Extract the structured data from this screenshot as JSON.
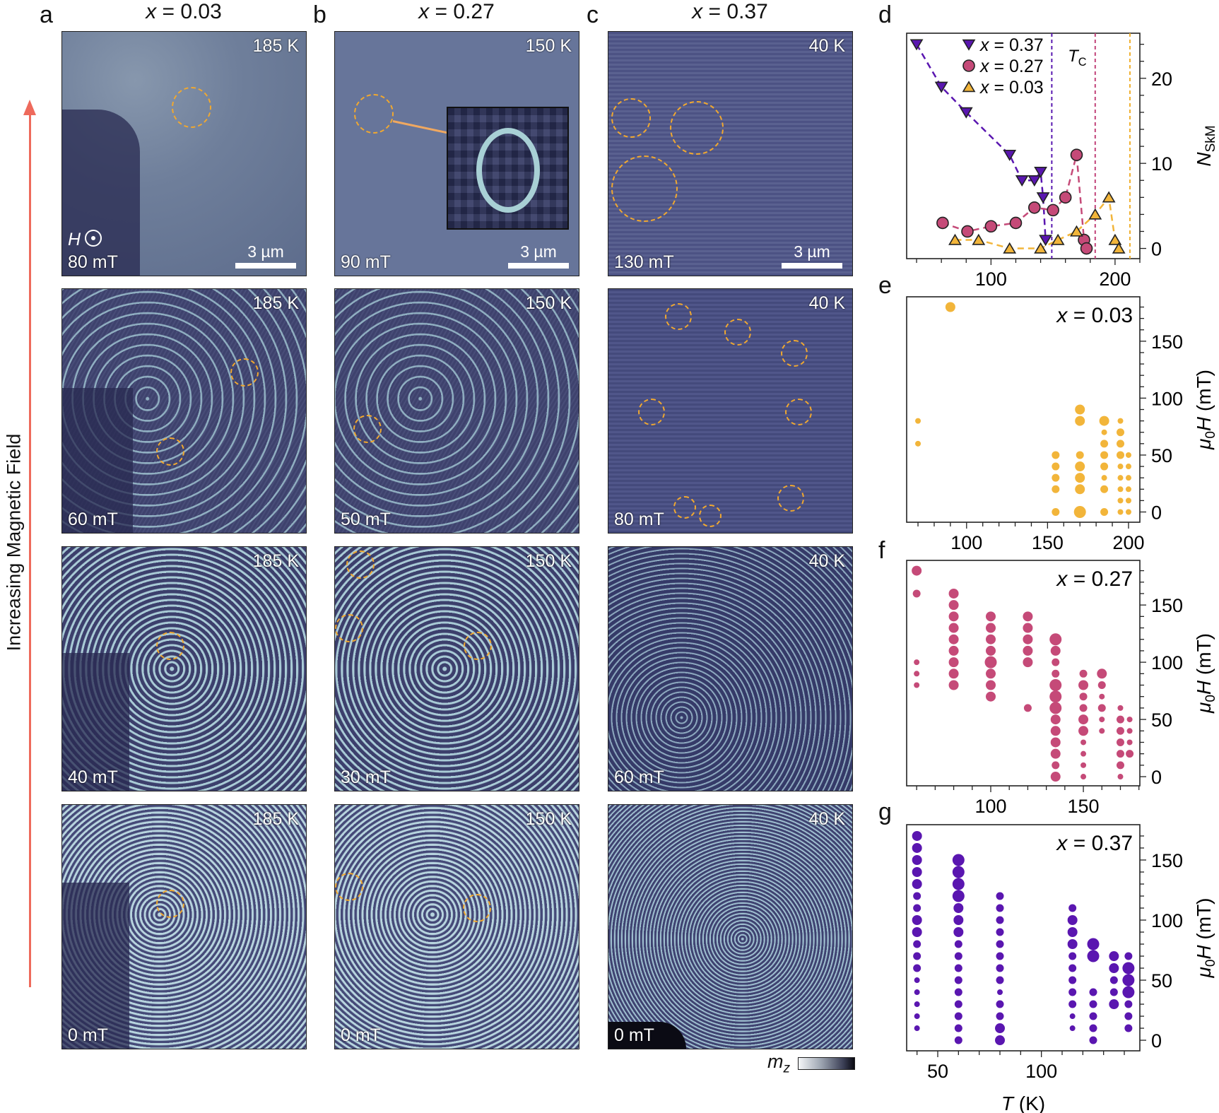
{
  "figure": {
    "side_label": "Increasing Magnetic Field",
    "panel_letters": {
      "a": "a",
      "b": "b",
      "c": "c",
      "d": "d",
      "e": "e",
      "f": "f",
      "g": "g"
    },
    "columns": [
      {
        "var": "x",
        "eq": " = 0.03",
        "temp": "185 K",
        "fields": [
          "80 mT",
          "60 mT",
          "40 mT",
          "0 mT"
        ]
      },
      {
        "var": "x",
        "eq": " = 0.27",
        "temp": "150 K",
        "fields": [
          "90 mT",
          "50 mT",
          "30 mT",
          "0 mT"
        ]
      },
      {
        "var": "x",
        "eq": " = 0.37",
        "temp": "40 K",
        "fields": [
          "130 mT",
          "80 mT",
          "60 mT",
          "0 mT"
        ]
      }
    ],
    "scale_bar": "3 µm",
    "field_symbol": "H",
    "colorbar": {
      "label": "m",
      "sub": "z"
    }
  },
  "chart_data": [
    {
      "panel": "d",
      "type": "line",
      "xlim": [
        32,
        220
      ],
      "ylim": [
        -1.2,
        25.3
      ],
      "xticks": [
        100,
        200
      ],
      "xminor": 20,
      "yticks": [
        0,
        10,
        20
      ],
      "yminor": 2,
      "xticklabels": [
        "100",
        "200"
      ],
      "yticklabels": [
        "0",
        "10",
        "20"
      ],
      "ylabel": [
        {
          "t": "N",
          "i": true
        },
        {
          "t": "SkM",
          "sub": true
        }
      ],
      "legend_position": "top-left",
      "tc_label": [
        {
          "t": "T",
          "i": true
        },
        {
          "t": "C",
          "sub": true
        }
      ],
      "tc_lines": [
        {
          "x": 149,
          "color": "#5a1ab0"
        },
        {
          "x": 184,
          "color": "#c2457a"
        },
        {
          "x": 212,
          "color": "#f0b030"
        }
      ],
      "series": [
        {
          "name": "x = 0.37",
          "marker": "triangle-down",
          "color": "#5a16b0",
          "x": [
            40,
            60,
            80,
            115,
            125,
            135,
            140,
            142,
            144
          ],
          "y": [
            24,
            19,
            16,
            11,
            8,
            8,
            9,
            6,
            1
          ]
        },
        {
          "name": "x = 0.27",
          "marker": "circle",
          "color": "#c54a78",
          "x": [
            61,
            81,
            100,
            120,
            135,
            150,
            160,
            169,
            175,
            177
          ],
          "y": [
            3,
            2,
            2.6,
            3,
            4.8,
            4.5,
            6,
            11,
            1,
            0
          ]
        },
        {
          "name": "x = 0.03",
          "marker": "triangle-up",
          "color": "#f2b53a",
          "x": [
            71,
            90,
            115,
            140,
            154,
            169,
            184,
            195,
            200,
            203
          ],
          "y": [
            1,
            1,
            0,
            0,
            1,
            2,
            4,
            6,
            1,
            0
          ]
        }
      ]
    },
    {
      "panel": "e",
      "type": "scatter",
      "title": "x = 0.03",
      "color": "#f2b53a",
      "xlim": [
        63,
        207
      ],
      "ylim": [
        -9,
        189
      ],
      "xticks": [
        100,
        150,
        200
      ],
      "xminor": 10,
      "yticks": [
        0,
        50,
        100,
        150
      ],
      "yminor": 10,
      "xticklabels": [
        "100",
        "150",
        "200"
      ],
      "yticklabels": [
        "0",
        "50",
        "100",
        "150"
      ],
      "ylabel": [
        {
          "t": "μ",
          "i": true
        },
        {
          "t": "0",
          "sub": true
        },
        {
          "t": "H",
          "i": true
        },
        {
          "t": " (mT)"
        }
      ],
      "point_format": [
        "T (K)",
        "μ0H (mT)",
        "size"
      ],
      "points": [
        [
          70,
          80,
          1
        ],
        [
          70,
          60,
          1
        ],
        [
          90,
          180,
          3
        ],
        [
          155,
          50,
          2
        ],
        [
          155,
          40,
          2
        ],
        [
          155,
          30,
          2
        ],
        [
          155,
          20,
          2
        ],
        [
          155,
          0,
          2
        ],
        [
          170,
          90,
          3
        ],
        [
          170,
          80,
          3
        ],
        [
          170,
          50,
          2
        ],
        [
          170,
          40,
          3
        ],
        [
          170,
          30,
          3
        ],
        [
          170,
          20,
          3
        ],
        [
          170,
          0,
          4
        ],
        [
          185,
          80,
          3
        ],
        [
          185,
          70,
          1
        ],
        [
          185,
          60,
          2
        ],
        [
          185,
          50,
          2
        ],
        [
          185,
          40,
          2
        ],
        [
          185,
          30,
          1
        ],
        [
          185,
          20,
          2
        ],
        [
          185,
          0,
          2
        ],
        [
          195,
          80,
          1
        ],
        [
          195,
          70,
          2
        ],
        [
          195,
          60,
          2
        ],
        [
          195,
          50,
          2
        ],
        [
          195,
          40,
          1
        ],
        [
          195,
          30,
          1
        ],
        [
          195,
          20,
          1
        ],
        [
          195,
          10,
          1
        ],
        [
          195,
          0,
          1
        ],
        [
          200,
          50,
          1
        ],
        [
          200,
          40,
          1
        ],
        [
          200,
          30,
          1
        ],
        [
          200,
          20,
          1
        ],
        [
          200,
          10,
          1
        ],
        [
          200,
          0,
          1
        ]
      ]
    },
    {
      "panel": "f",
      "type": "scatter",
      "title": "x = 0.27",
      "color": "#c54a78",
      "xlim": [
        54.6,
        180.5
      ],
      "ylim": [
        -8,
        189
      ],
      "xticks": [
        100,
        150
      ],
      "xminor": 10,
      "yticks": [
        0,
        50,
        100,
        150
      ],
      "yminor": 10,
      "xticklabels": [
        "100",
        "150"
      ],
      "yticklabels": [
        "0",
        "50",
        "100",
        "150"
      ],
      "ylabel": [
        {
          "t": "μ",
          "i": true
        },
        {
          "t": "0",
          "sub": true
        },
        {
          "t": "H",
          "i": true
        },
        {
          "t": " (mT)"
        }
      ],
      "point_format": [
        "T (K)",
        "μ0H (mT)",
        "size"
      ],
      "points": [
        [
          60,
          180,
          3
        ],
        [
          60,
          160,
          2
        ],
        [
          60,
          100,
          1
        ],
        [
          60,
          90,
          1
        ],
        [
          60,
          80,
          1
        ],
        [
          80,
          160,
          3
        ],
        [
          80,
          150,
          3
        ],
        [
          80,
          140,
          3
        ],
        [
          80,
          130,
          3
        ],
        [
          80,
          120,
          3
        ],
        [
          80,
          110,
          3
        ],
        [
          80,
          100,
          3
        ],
        [
          80,
          90,
          3
        ],
        [
          80,
          80,
          3
        ],
        [
          100,
          140,
          3
        ],
        [
          100,
          130,
          3
        ],
        [
          100,
          120,
          3
        ],
        [
          100,
          110,
          3
        ],
        [
          100,
          100,
          4
        ],
        [
          100,
          90,
          3
        ],
        [
          100,
          80,
          3
        ],
        [
          100,
          70,
          3
        ],
        [
          120,
          140,
          3
        ],
        [
          120,
          130,
          3
        ],
        [
          120,
          120,
          3
        ],
        [
          120,
          110,
          3
        ],
        [
          120,
          100,
          3
        ],
        [
          120,
          60,
          2
        ],
        [
          135,
          120,
          4
        ],
        [
          135,
          110,
          3
        ],
        [
          135,
          100,
          2
        ],
        [
          135,
          90,
          2
        ],
        [
          135,
          80,
          4
        ],
        [
          135,
          70,
          4
        ],
        [
          135,
          60,
          4
        ],
        [
          135,
          50,
          3
        ],
        [
          135,
          40,
          3
        ],
        [
          135,
          30,
          3
        ],
        [
          135,
          20,
          3
        ],
        [
          135,
          10,
          2
        ],
        [
          135,
          0,
          3
        ],
        [
          150,
          90,
          2
        ],
        [
          150,
          80,
          3
        ],
        [
          150,
          70,
          2
        ],
        [
          150,
          60,
          2
        ],
        [
          150,
          50,
          3
        ],
        [
          150,
          40,
          3
        ],
        [
          150,
          30,
          1
        ],
        [
          150,
          20,
          1
        ],
        [
          150,
          10,
          1
        ],
        [
          150,
          0,
          1
        ],
        [
          160,
          90,
          3
        ],
        [
          160,
          80,
          2
        ],
        [
          160,
          70,
          1
        ],
        [
          160,
          60,
          2
        ],
        [
          160,
          50,
          1
        ],
        [
          160,
          40,
          1
        ],
        [
          170,
          60,
          1
        ],
        [
          170,
          50,
          2
        ],
        [
          170,
          40,
          2
        ],
        [
          170,
          30,
          2
        ],
        [
          170,
          20,
          2
        ],
        [
          170,
          10,
          2
        ],
        [
          170,
          0,
          1
        ],
        [
          175,
          50,
          1
        ],
        [
          175,
          40,
          1
        ],
        [
          175,
          30,
          1
        ],
        [
          175,
          20,
          2
        ]
      ]
    },
    {
      "panel": "g",
      "type": "scatter",
      "title": "x = 0.37",
      "color": "#5a16b0",
      "xlim": [
        35,
        147.5
      ],
      "ylim": [
        -8.8,
        179.4
      ],
      "xticks": [
        50,
        100
      ],
      "xminor": 10,
      "yticks": [
        0,
        50,
        100,
        150
      ],
      "yminor": 10,
      "xticklabels": [
        "50",
        "100"
      ],
      "yticklabels": [
        "0",
        "50",
        "100",
        "150"
      ],
      "xlabel": [
        {
          "t": "T",
          "i": true
        },
        {
          "t": " (K)"
        }
      ],
      "ylabel": [
        {
          "t": "μ",
          "i": true
        },
        {
          "t": "0",
          "sub": true
        },
        {
          "t": "H",
          "i": true
        },
        {
          "t": " (mT)"
        }
      ],
      "point_format": [
        "T (K)",
        "μ0H (mT)",
        "size"
      ],
      "points": [
        [
          40,
          170,
          3
        ],
        [
          40,
          160,
          3
        ],
        [
          40,
          150,
          3
        ],
        [
          40,
          140,
          3
        ],
        [
          40,
          130,
          3
        ],
        [
          40,
          120,
          2
        ],
        [
          40,
          110,
          2
        ],
        [
          40,
          100,
          3
        ],
        [
          40,
          90,
          3
        ],
        [
          40,
          80,
          2
        ],
        [
          40,
          70,
          2
        ],
        [
          40,
          60,
          2
        ],
        [
          40,
          50,
          1
        ],
        [
          40,
          40,
          1
        ],
        [
          40,
          30,
          1
        ],
        [
          40,
          20,
          1
        ],
        [
          40,
          10,
          1
        ],
        [
          60,
          150,
          4
        ],
        [
          60,
          140,
          4
        ],
        [
          60,
          130,
          4
        ],
        [
          60,
          120,
          4
        ],
        [
          60,
          110,
          3
        ],
        [
          60,
          100,
          3
        ],
        [
          60,
          90,
          3
        ],
        [
          60,
          80,
          2
        ],
        [
          60,
          70,
          2
        ],
        [
          60,
          60,
          2
        ],
        [
          60,
          50,
          2
        ],
        [
          60,
          40,
          2
        ],
        [
          60,
          30,
          2
        ],
        [
          60,
          20,
          2
        ],
        [
          60,
          10,
          2
        ],
        [
          60,
          0,
          2
        ],
        [
          80,
          120,
          2
        ],
        [
          80,
          110,
          2
        ],
        [
          80,
          100,
          2
        ],
        [
          80,
          90,
          2
        ],
        [
          80,
          80,
          2
        ],
        [
          80,
          70,
          2
        ],
        [
          80,
          60,
          2
        ],
        [
          80,
          50,
          2
        ],
        [
          80,
          40,
          1
        ],
        [
          80,
          30,
          2
        ],
        [
          80,
          20,
          2
        ],
        [
          80,
          10,
          3
        ],
        [
          80,
          0,
          3
        ],
        [
          115,
          110,
          2
        ],
        [
          115,
          100,
          3
        ],
        [
          115,
          90,
          3
        ],
        [
          115,
          80,
          3
        ],
        [
          115,
          70,
          2
        ],
        [
          115,
          60,
          2
        ],
        [
          115,
          50,
          2
        ],
        [
          115,
          40,
          2
        ],
        [
          115,
          30,
          2
        ],
        [
          115,
          20,
          1
        ],
        [
          115,
          10,
          1
        ],
        [
          125,
          80,
          4
        ],
        [
          125,
          70,
          4
        ],
        [
          125,
          40,
          2
        ],
        [
          125,
          30,
          2
        ],
        [
          125,
          20,
          2
        ],
        [
          125,
          10,
          2
        ],
        [
          125,
          0,
          2
        ],
        [
          135,
          70,
          3
        ],
        [
          135,
          60,
          3
        ],
        [
          135,
          50,
          2
        ],
        [
          135,
          40,
          2
        ],
        [
          135,
          30,
          3
        ],
        [
          142,
          70,
          2
        ],
        [
          142,
          60,
          4
        ],
        [
          142,
          50,
          4
        ],
        [
          142,
          40,
          4
        ],
        [
          142,
          30,
          2
        ],
        [
          142,
          20,
          2
        ],
        [
          142,
          10,
          2
        ]
      ]
    }
  ]
}
